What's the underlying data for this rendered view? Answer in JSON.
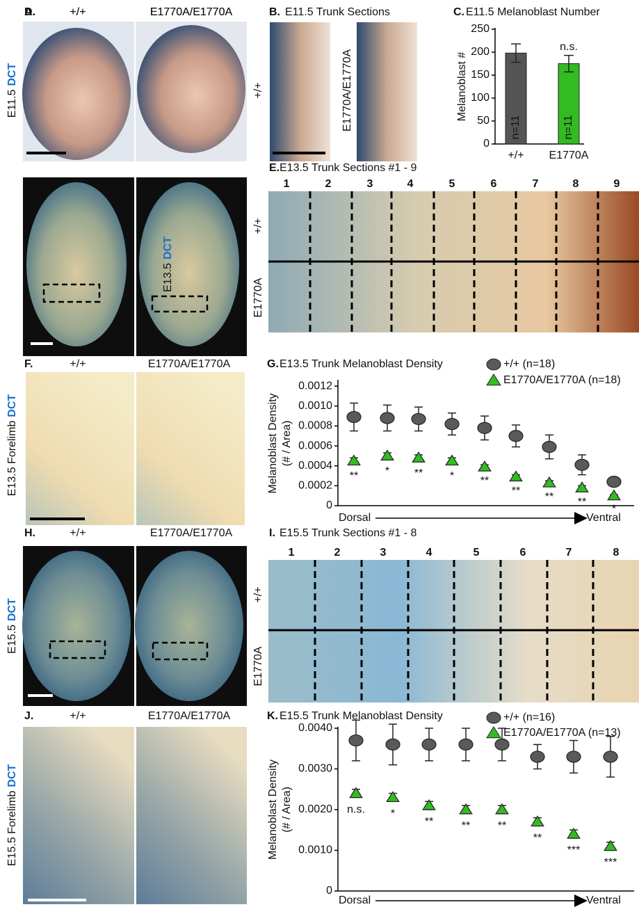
{
  "panels": {
    "A": {
      "label": "A.",
      "left": "+/+",
      "right": "E1770A/E1770A",
      "stage": "E11.5",
      "stain": "DCT"
    },
    "B": {
      "label": "B.",
      "title": "E11.5 Trunk Sections",
      "left": "+/+",
      "right": "E1770A/E1770A"
    },
    "D": {
      "label": "D.",
      "left": "+/+",
      "right": "E1770A/E1770A",
      "stage": "E13.5",
      "stain": "DCT"
    },
    "E": {
      "label": "E.",
      "title": "E13.5 Trunk Sections #1 - 9",
      "sections": [
        "1",
        "2",
        "3",
        "4",
        "5",
        "6",
        "7",
        "8",
        "9"
      ],
      "top": "+/+",
      "bottom": "E1770A"
    },
    "F": {
      "label": "F.",
      "left": "+/+",
      "right": "E1770A/E1770A",
      "stage": "E13.5 Forelimb",
      "stain": "DCT"
    },
    "H": {
      "label": "H.",
      "left": "+/+",
      "right": "E1770A/E1770A",
      "stage": "E15.5",
      "stain": "DCT"
    },
    "I": {
      "label": "I.",
      "title": "E15.5 Trunk Sections #1 - 8",
      "sections": [
        "1",
        "2",
        "3",
        "4",
        "5",
        "6",
        "7",
        "8"
      ],
      "top": "+/+",
      "bottom": "E1770A"
    },
    "J": {
      "label": "J.",
      "left": "+/+",
      "right": "E1770A/E1770A",
      "stage": "E15.5 Forelimb",
      "stain": "DCT"
    }
  },
  "chart_data": [
    {
      "type": "bar",
      "label": "C.",
      "title": "E11.5 Melanoblast Number",
      "ylabel": [
        "Melanoblast #"
      ],
      "categories": [
        "+/+",
        "E1770A"
      ],
      "values": [
        198,
        175
      ],
      "errors": [
        20,
        18
      ],
      "colors": [
        "#555555",
        "#33bb22"
      ],
      "bar_labels": [
        "n=11",
        "n=11"
      ],
      "significance": [
        null,
        "n.s."
      ],
      "ylim": [
        0,
        250
      ],
      "yticks": [
        0,
        50,
        100,
        150,
        200,
        250
      ]
    },
    {
      "type": "dot",
      "label": "G.",
      "title": "E13.5 Trunk Melanoblast Density",
      "ylabel": [
        "Melanoblast Density",
        "(# / Area)"
      ],
      "categories": [
        null,
        null,
        null,
        null,
        null,
        null,
        null,
        null,
        null
      ],
      "series": [
        {
          "name": "+/+ (n=18)",
          "color": "#5a5a5a",
          "marker": "circle",
          "values": [
            0.00089,
            0.00088,
            0.00087,
            0.00082,
            0.00078,
            0.0007,
            0.00059,
            0.00041,
            0.00024
          ],
          "errors": [
            0.00014,
            0.00013,
            0.00012,
            0.00011,
            0.00012,
            0.00011,
            0.00012,
            0.0001,
            4e-05
          ]
        },
        {
          "name": "E1770A/E1770A (n=18)",
          "color": "#33bb22",
          "marker": "triangle",
          "values": [
            0.00045,
            0.0005,
            0.00048,
            0.00045,
            0.00039,
            0.00029,
            0.00023,
            0.00018,
            0.0001
          ],
          "errors": [
            3e-05,
            3e-05,
            3e-05,
            3e-05,
            2e-05,
            2e-05,
            2e-05,
            2e-05,
            1e-05
          ]
        }
      ],
      "significance": [
        "**",
        "*",
        "**",
        "*",
        "**",
        "**",
        "**",
        "**",
        "*"
      ],
      "x_start_label": "Dorsal",
      "x_end_label": "Ventral",
      "ylim": [
        0,
        0.00125
      ],
      "yticks": [
        0,
        0.0002,
        0.0004,
        0.0006,
        0.0008,
        {
          "value": 0.001,
          "label": "0.0010"
        },
        0.0012
      ]
    },
    {
      "type": "dot",
      "label": "K.",
      "title": "E15.5 Trunk Melanoblast Density",
      "ylabel": [
        "Melanoblast Density",
        "(# / Area)"
      ],
      "categories": [
        null,
        null,
        null,
        null,
        null,
        null,
        null,
        null
      ],
      "series": [
        {
          "name": "+/+ (n=16)",
          "color": "#5a5a5a",
          "marker": "circle",
          "values": [
            0.0037,
            0.0036,
            0.0036,
            0.0036,
            0.0036,
            0.0033,
            0.0033,
            0.0033
          ],
          "errors": [
            0.0005,
            0.0005,
            0.0004,
            0.0004,
            0.0004,
            0.0003,
            0.0004,
            0.0005
          ]
        },
        {
          "name": "E1770A/E1770A (n=13)",
          "color": "#33bb22",
          "marker": "triangle",
          "values": [
            0.0024,
            0.0023,
            0.0021,
            0.002,
            0.002,
            0.0017,
            0.0014,
            0.0011
          ],
          "errors": [
            0.0001,
            0.0001,
            0.0001,
            0.0001,
            0.0001,
            0.0001,
            0.0001,
            0.0001
          ]
        }
      ],
      "significance": [
        "n.s.",
        "*",
        "**",
        "**",
        "**",
        "**",
        "***",
        "***"
      ],
      "x_start_label": "Dorsal",
      "x_end_label": "Ventral",
      "ylim": [
        0,
        0.004
      ],
      "yticks": [
        0,
        {
          "value": 0.001,
          "label": "0.0010"
        },
        {
          "value": 0.002,
          "label": "0.0020"
        },
        {
          "value": 0.003,
          "label": "0.0030"
        },
        {
          "value": 0.004,
          "label": "0.0040"
        }
      ]
    }
  ]
}
